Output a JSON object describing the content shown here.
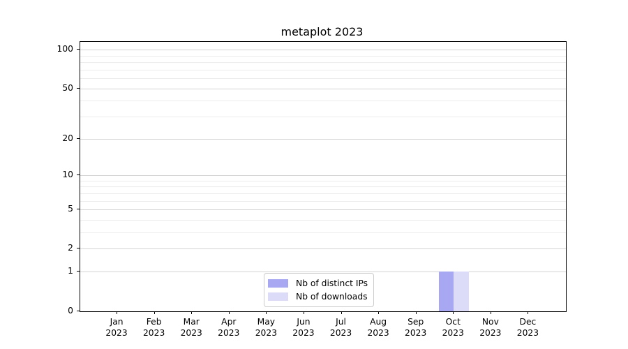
{
  "figure": {
    "background": "#ffffff"
  },
  "chart_data": {
    "type": "bar",
    "title": "metaplot 2023",
    "categories": [
      "Jan",
      "Feb",
      "Mar",
      "Apr",
      "May",
      "Jun",
      "Jul",
      "Aug",
      "Sep",
      "Oct",
      "Nov",
      "Dec"
    ],
    "year": "2023",
    "series": [
      {
        "name": "Nb of distinct IPs",
        "color": "#a7a7f2",
        "values": [
          0,
          0,
          0,
          0,
          0,
          0,
          0,
          0,
          0,
          1,
          0,
          0
        ]
      },
      {
        "name": "Nb of downloads",
        "color": "#dcdcf9",
        "values": [
          0,
          0,
          0,
          0,
          0,
          0,
          0,
          0,
          0,
          1,
          0,
          0
        ]
      }
    ],
    "xlabel": "",
    "ylabel": "",
    "y_scale": "log1p",
    "y_ticks": [
      0,
      1,
      2,
      5,
      10,
      20,
      50,
      100
    ],
    "y_minor_ticks": [
      3,
      4,
      6,
      7,
      8,
      9,
      30,
      40,
      60,
      70,
      80,
      90
    ],
    "ylim": [
      0,
      115
    ],
    "grid": "horizontal",
    "legend_position": "lower center"
  },
  "legend": {
    "items": [
      {
        "label": "Nb of distinct IPs",
        "color": "#a7a7f2"
      },
      {
        "label": "Nb of downloads",
        "color": "#dcdcf9"
      }
    ]
  },
  "colors": {
    "grid_major": "#d3d3d3",
    "grid_minor": "#ececec",
    "spine": "#000000",
    "text": "#000000",
    "legend_border": "#cccccc",
    "bar_distinct_ips": "#a7a7f2",
    "bar_downloads": "#dcdcf9"
  }
}
